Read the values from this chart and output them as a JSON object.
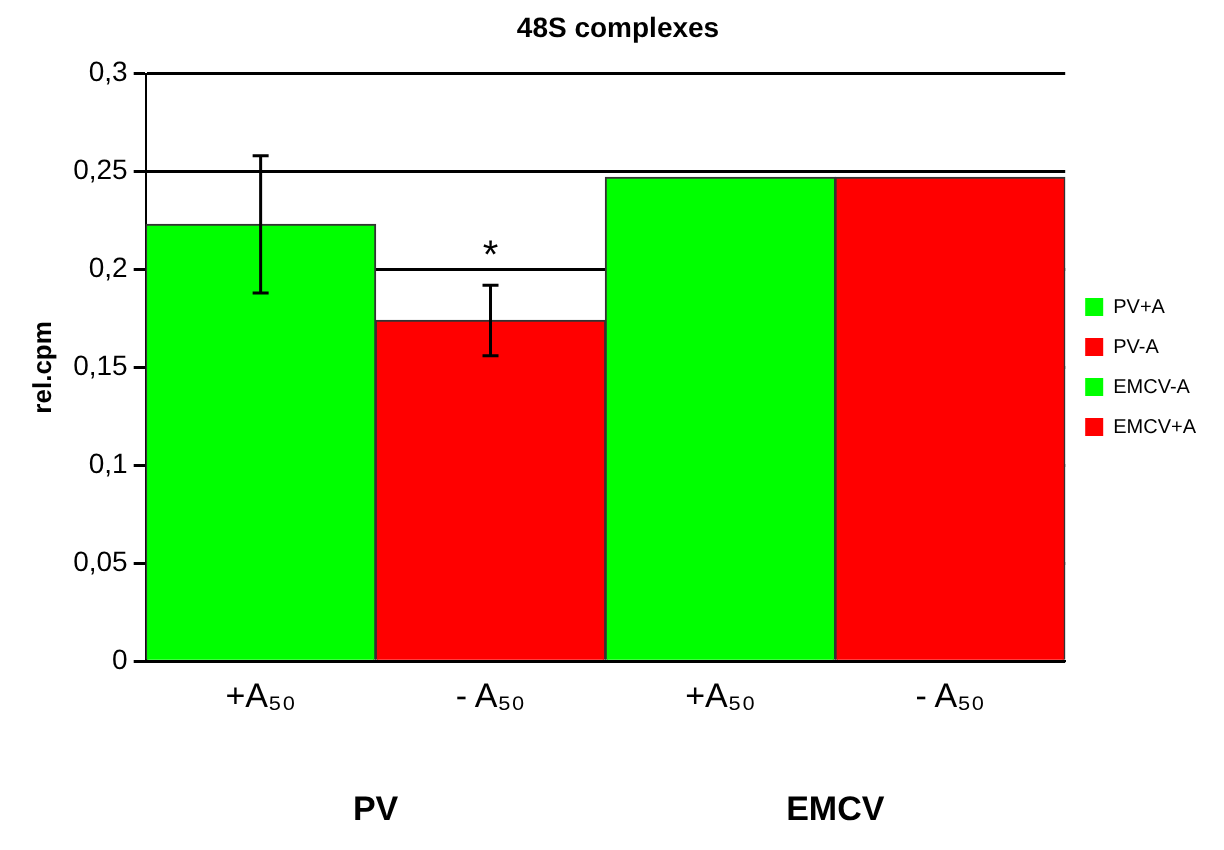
{
  "chart_data": {
    "type": "bar",
    "title": "48S complexes",
    "ylabel": "rel.cpm",
    "categories": [
      "+A₅₀",
      "- A₅₀",
      "+A₅₀",
      "- A₅₀"
    ],
    "series": [
      {
        "name": "PV+A",
        "color": "#00ff00",
        "values": [
          0.223,
          null,
          null,
          null
        ],
        "errors": [
          0.035,
          null,
          null,
          null
        ]
      },
      {
        "name": "PV-A",
        "color": "#ff0000",
        "values": [
          null,
          0.174,
          null,
          null
        ],
        "errors": [
          null,
          0.018,
          null,
          null
        ]
      },
      {
        "name": "EMCV-A",
        "color": "#00ff00",
        "values": [
          null,
          null,
          0.247,
          null
        ]
      },
      {
        "name": "EMCV+A",
        "color": "#ff0000",
        "values": [
          null,
          null,
          null,
          0.247
        ]
      }
    ],
    "ylim": [
      0,
      0.3
    ],
    "yticks": [
      {
        "value": 0,
        "label": "0"
      },
      {
        "value": 0.05,
        "label": "0,05"
      },
      {
        "value": 0.1,
        "label": "0,1"
      },
      {
        "value": 0.15,
        "label": "0,15"
      },
      {
        "value": 0.2,
        "label": "0,2"
      },
      {
        "value": 0.25,
        "label": "0,25"
      },
      {
        "value": 0.3,
        "label": "0,3"
      }
    ],
    "grid": "y",
    "legend": "right",
    "annotations": [
      "*",
      "PV",
      "EMCV"
    ]
  }
}
